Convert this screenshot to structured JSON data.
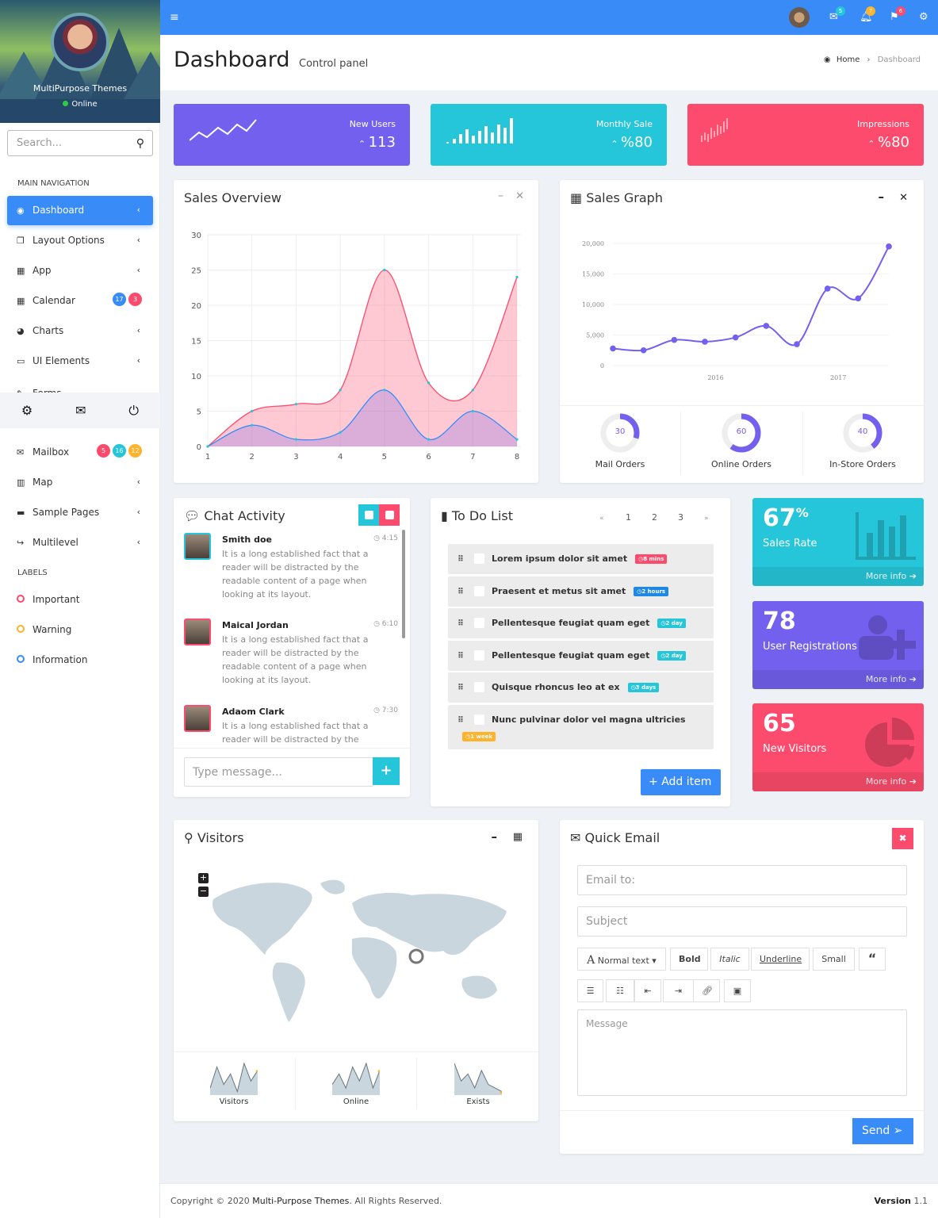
{
  "sidebar": {
    "user_name": "MultiPurpose Themes",
    "user_status": "Online",
    "search_placeholder": "Search...",
    "main_nav_header": "MAIN NAVIGATION",
    "items": [
      {
        "label": "Dashboard",
        "icon": "dashboard-icon",
        "active": true
      },
      {
        "label": "Layout Options",
        "icon": "copy-icon"
      },
      {
        "label": "App",
        "icon": "grid-icon"
      },
      {
        "label": "Calendar",
        "icon": "calendar-icon",
        "badges": [
          {
            "text": "17",
            "color": "#398bf7"
          },
          {
            "text": "3",
            "color": "#fc4b6c"
          }
        ]
      },
      {
        "label": "Charts",
        "icon": "pie-chart-icon"
      },
      {
        "label": "UI Elements",
        "icon": "laptop-icon"
      },
      {
        "label": "Forms",
        "icon": "edit-icon"
      }
    ],
    "items2": [
      {
        "label": "Mailbox",
        "icon": "envelope-icon",
        "badges": [
          {
            "text": "5",
            "color": "#fc4b6c"
          },
          {
            "text": "16",
            "color": "#26c6da"
          },
          {
            "text": "12",
            "color": "#ffb22b"
          }
        ]
      },
      {
        "label": "Map",
        "icon": "map-icon"
      },
      {
        "label": "Sample Pages",
        "icon": "folder-icon"
      },
      {
        "label": "Multilevel",
        "icon": "share-icon"
      }
    ],
    "labels_header": "LABELS",
    "labels": [
      {
        "label": "Important",
        "color": "#fc4b6c"
      },
      {
        "label": "Warning",
        "color": "#ffb22b"
      },
      {
        "label": "Information",
        "color": "#398bf7"
      }
    ]
  },
  "topbar": {
    "mail_count": "5",
    "bell_count": "7",
    "flag_count": "6",
    "mail_color": "#26c6da",
    "bell_color": "#ffb22b",
    "flag_color": "#fc4b6c"
  },
  "page": {
    "title": "Dashboard",
    "subtitle": "Control panel",
    "breadcrumb": [
      "Home",
      "Dashboard"
    ]
  },
  "stats": [
    {
      "label": "New Users",
      "value": "113",
      "color": "#7460ee"
    },
    {
      "label": "Monthly Sale",
      "value": "%80",
      "color": "#26c6da"
    },
    {
      "label": "Impressions",
      "value": "%80",
      "color": "#fc4b6c"
    }
  ],
  "sales_overview": {
    "title": "Sales Overview"
  },
  "sales_graph": {
    "title": "Sales Graph",
    "donuts": [
      {
        "label": "Mail Orders",
        "value": 30
      },
      {
        "label": "Online Orders",
        "value": 60
      },
      {
        "label": "In-Store Orders",
        "value": 40
      }
    ]
  },
  "chart_data": [
    {
      "type": "area",
      "x": [
        1,
        2,
        3,
        4,
        5,
        6,
        7,
        8
      ],
      "ylim": [
        0,
        30
      ],
      "yticks": [
        0,
        5,
        10,
        15,
        20,
        25,
        30
      ],
      "grid": true,
      "series": [
        {
          "values": [
            0,
            5,
            6,
            8,
            25,
            9,
            8,
            24
          ],
          "color": "#fc4b6c"
        },
        {
          "values": [
            0,
            3,
            1,
            2,
            8,
            1,
            5,
            1
          ],
          "color": "#398bf7"
        }
      ]
    },
    {
      "type": "line",
      "ylim": [
        0,
        20000
      ],
      "yticks": [
        "0",
        "5,000",
        "10,000",
        "15,000",
        "20,000"
      ],
      "xticks": [
        "2016",
        "2017"
      ],
      "grid": true,
      "series": [
        {
          "values": [
            2800,
            2500,
            4200,
            3900,
            4600,
            6500,
            3500,
            12600,
            11000,
            19500
          ],
          "color": "#7460ee"
        }
      ]
    }
  ],
  "chat": {
    "title": "Chat Activity",
    "input_placeholder": "Type message...",
    "messages": [
      {
        "name": "Smith doe",
        "time": "4:15",
        "text": "It is a long established fact that a reader will be distracted by the readable content of a page when looking at its layout.",
        "border": "#26c6da"
      },
      {
        "name": "Maical Jordan",
        "time": "6:10",
        "text": "It is a long established fact that a reader will be distracted by the readable content of a page when looking at its layout.",
        "border": "#fc4b6c"
      },
      {
        "name": "Adaom Clark",
        "time": "7:30",
        "text": "It is a long established fact that a reader will be distracted by the",
        "border": "#fc4b6c"
      }
    ]
  },
  "todo": {
    "title": "To Do List",
    "pages": [
      "«",
      "1",
      "2",
      "3",
      "»"
    ],
    "add_label": "Add item",
    "items": [
      {
        "text": "Lorem ipsum dolor sit amet",
        "tag": "8 mins",
        "color": "#fc4b6c"
      },
      {
        "text": "Praesent et metus sit amet",
        "tag": "2 hours",
        "color": "#1e88e5"
      },
      {
        "text": "Pellentesque feugiat quam eget",
        "tag": "2 day",
        "color": "#26c6da"
      },
      {
        "text": "Pellentesque feugiat quam eget",
        "tag": "2 day",
        "color": "#26c6da"
      },
      {
        "text": "Quisque rhoncus leo at ex",
        "tag": "3 days",
        "color": "#26c6da"
      },
      {
        "text": "Nunc pulvinar dolor vel magna ultricies",
        "tag": "1 week",
        "color": "#ffb22b"
      }
    ]
  },
  "boxes": [
    {
      "value": "67",
      "unit": "%",
      "label": "Sales Rate",
      "more": "More info",
      "color": "#26c6da"
    },
    {
      "value": "78",
      "unit": "",
      "label": "User Registrations",
      "more": "More info",
      "color": "#7460ee"
    },
    {
      "value": "65",
      "unit": "",
      "label": "New Visitors",
      "more": "More info",
      "color": "#fc4b6c"
    }
  ],
  "visitors": {
    "title": "Visitors",
    "sparks": [
      {
        "label": "Visitors",
        "values": [
          2,
          8,
          3,
          6,
          1,
          9,
          4,
          7
        ]
      },
      {
        "label": "Online",
        "values": [
          3,
          6,
          2,
          8,
          4,
          9,
          2,
          7
        ]
      },
      {
        "label": "Exists",
        "values": [
          9,
          4,
          6,
          2,
          7,
          3,
          2,
          1
        ]
      }
    ]
  },
  "email": {
    "title": "Quick Email",
    "to_placeholder": "Email to:",
    "subject_placeholder": "Subject",
    "message_placeholder": "Message",
    "toolbar": [
      "Normal text",
      "Bold",
      "Italic",
      "Underline",
      "Small"
    ],
    "send_label": "Send"
  },
  "footer": {
    "copyright": "Copyright © 2020 ",
    "brand": "Multi-Purpose Themes",
    "rights": ". All Rights Reserved.",
    "version_label": "Version",
    "version": "1.1"
  }
}
